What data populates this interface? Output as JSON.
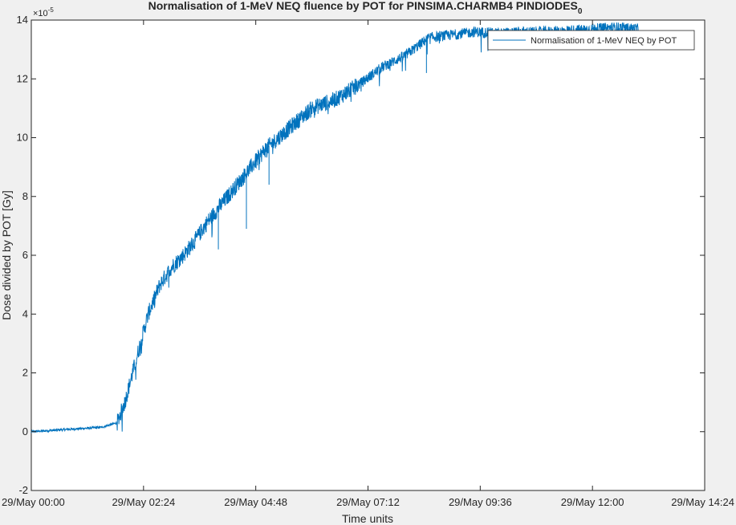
{
  "chart_data": {
    "type": "line",
    "title": "Normalisation of 1-MeV NEQ fluence by POT for PINSIMA.CHARMB4 PINDIODES",
    "title_subscript": "0",
    "xlabel": "Time units",
    "ylabel": "Dose divided by POT [Gy]",
    "y_exponent_label": "×10",
    "y_exponent_power": "-5",
    "x_ticks": [
      "29/May 00:00",
      "29/May 02:24",
      "29/May 04:48",
      "29/May 07:12",
      "29/May 09:36",
      "29/May 12:00",
      "29/May 14:24"
    ],
    "y_ticks": [
      "-2",
      "0",
      "2",
      "4",
      "6",
      "8",
      "10",
      "12",
      "14"
    ],
    "xlim": [
      "29/May 00:00",
      "29/May 14:24"
    ],
    "ylim": [
      -2,
      14
    ],
    "grid": false,
    "legend_position": "top-right",
    "line_color": "#0072bd",
    "series": [
      {
        "name": "Normalisation of 1-MeV NEQ by POT",
        "x": [
          "29/May 00:00",
          "29/May 00:30",
          "29/May 01:00",
          "29/May 01:30",
          "29/May 01:50",
          "29/May 02:00",
          "29/May 02:10",
          "29/May 02:20",
          "29/May 02:30",
          "29/May 02:45",
          "29/May 03:00",
          "29/May 03:15",
          "29/May 03:30",
          "29/May 03:45",
          "29/May 04:00",
          "29/May 04:30",
          "29/May 05:00",
          "29/May 05:30",
          "29/May 06:00",
          "29/May 06:30",
          "29/May 07:00",
          "29/May 07:30",
          "29/May 08:00",
          "29/May 08:30",
          "29/May 09:00",
          "29/May 09:30",
          "29/May 10:00",
          "29/May 10:30",
          "29/May 11:00",
          "29/May 11:30",
          "29/May 12:00",
          "29/May 12:30",
          "29/May 13:00"
        ],
        "values": [
          0.0,
          0.05,
          0.1,
          0.15,
          0.3,
          1.0,
          2.0,
          3.0,
          4.0,
          5.0,
          5.6,
          6.0,
          6.5,
          7.1,
          7.6,
          8.6,
          9.6,
          10.3,
          11.0,
          11.3,
          11.8,
          12.4,
          12.8,
          13.4,
          13.5,
          13.6,
          13.55,
          13.6,
          13.6,
          13.65,
          13.7,
          13.75,
          13.7
        ],
        "spikes": [
          {
            "x": "29/May 04:00",
            "value": 6.2
          },
          {
            "x": "29/May 04:36",
            "value": 6.9
          },
          {
            "x": "29/May 08:27",
            "value": 12.2
          },
          {
            "x": "29/May 05:05",
            "value": 8.4
          }
        ]
      }
    ]
  }
}
